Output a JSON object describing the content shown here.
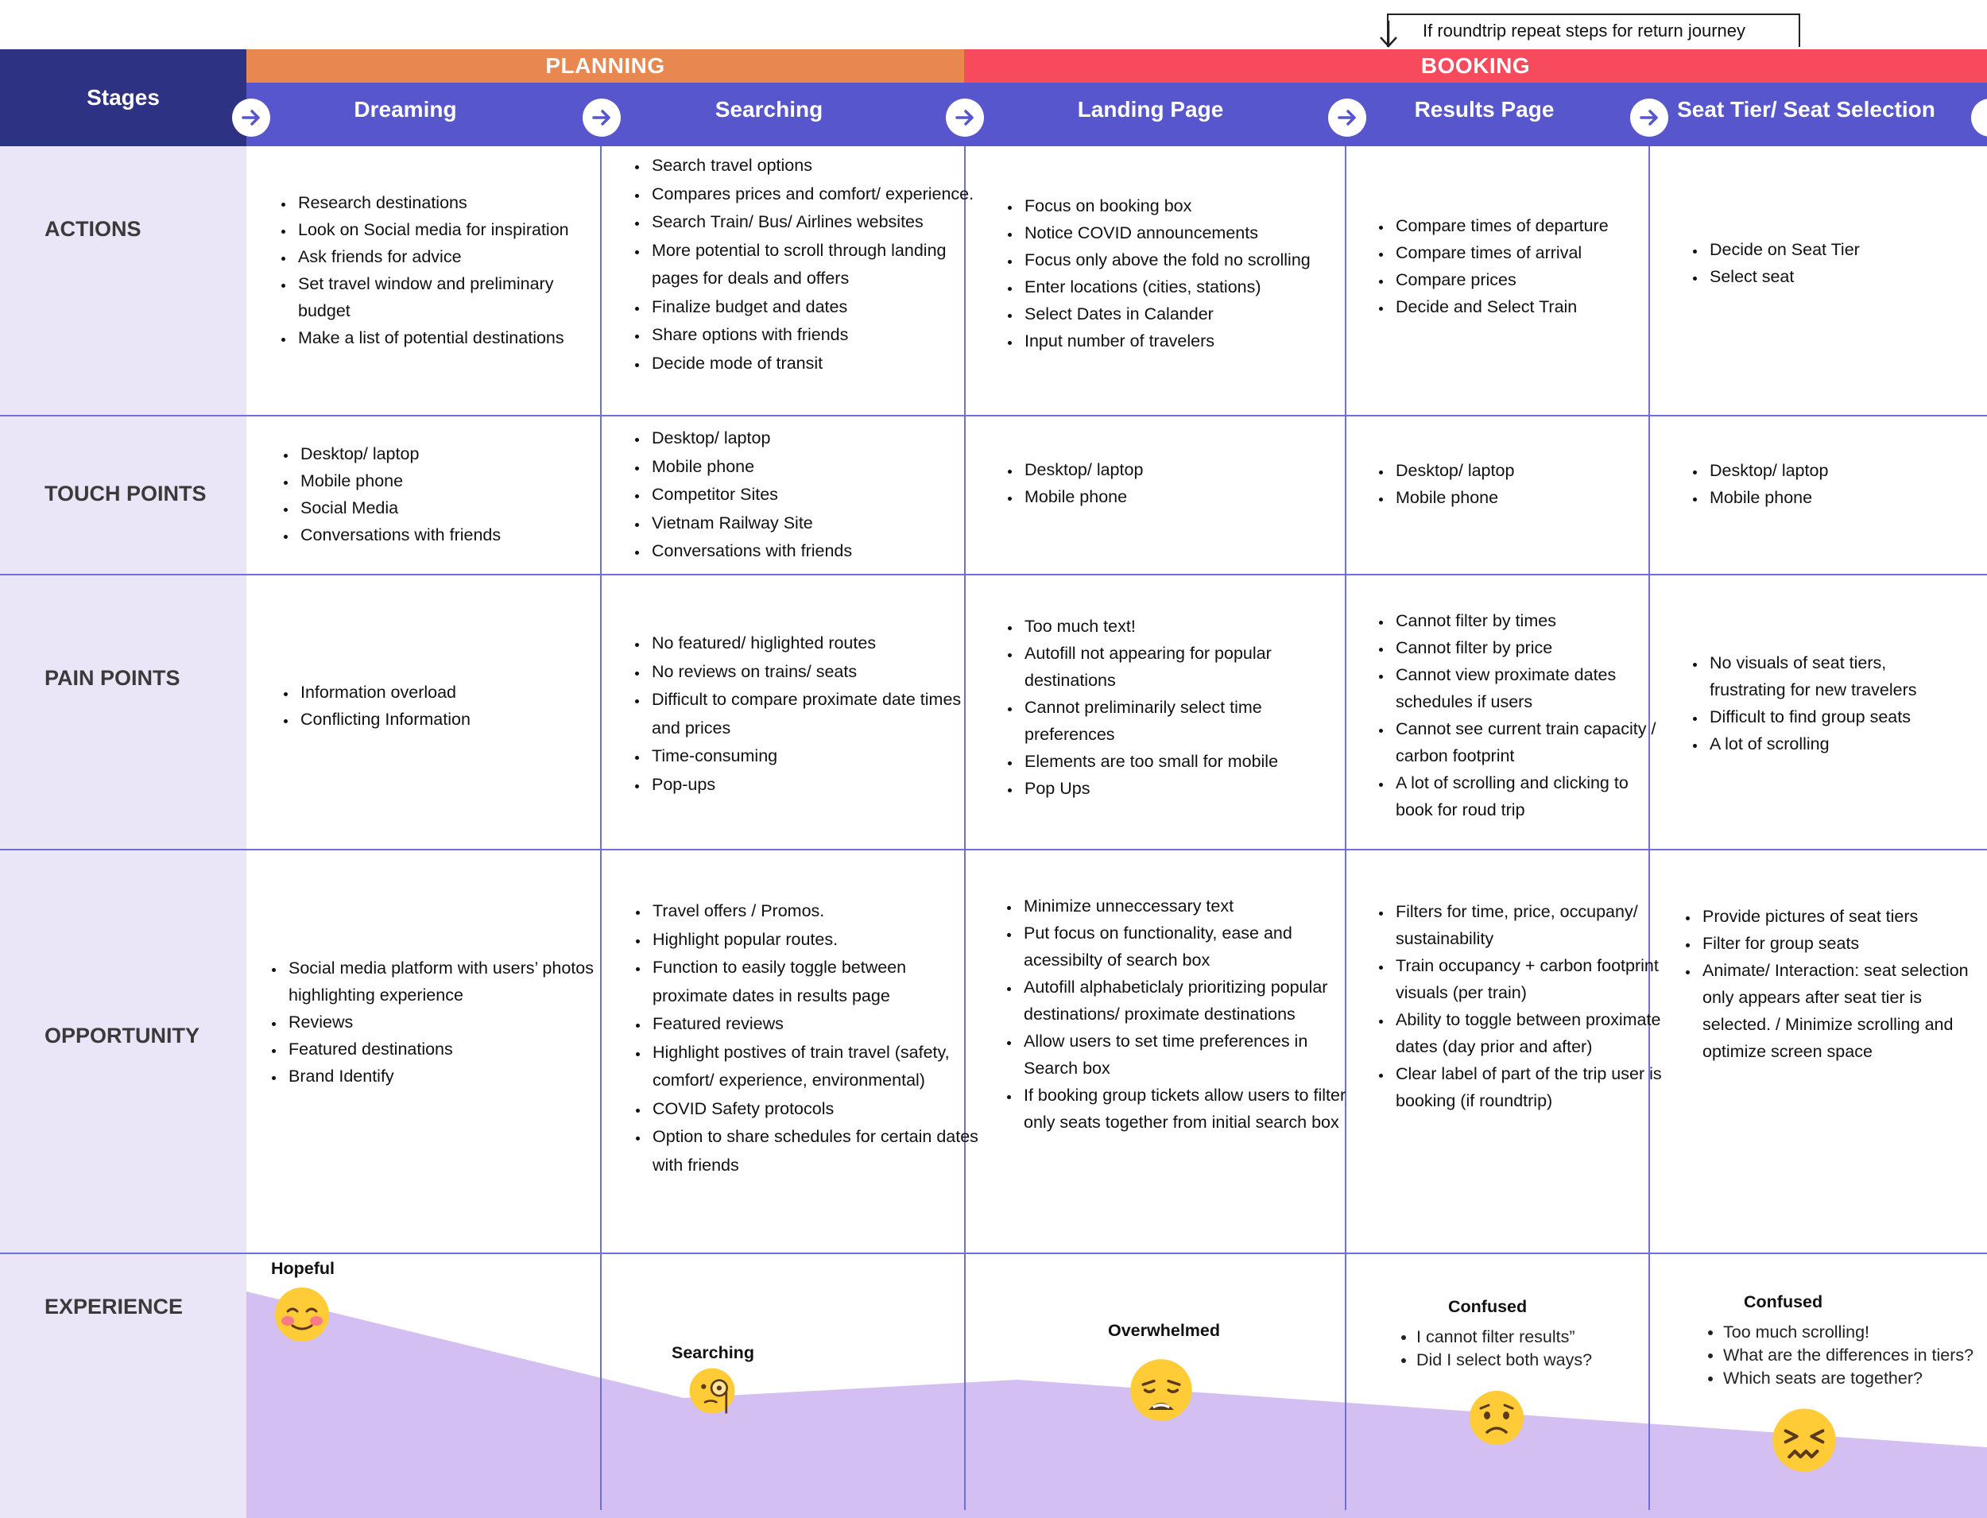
{
  "note": "If roundtrip repeat steps for return journey",
  "header": {
    "stages_label": "Stages",
    "phases": [
      "PLANNING",
      "BOOKING"
    ],
    "stages": [
      "Dreaming",
      "Searching",
      "Landing Page",
      "Results Page",
      "Seat Tier/ Seat Selection"
    ]
  },
  "rows": [
    "ACTIONS",
    "TOUCH POINTS",
    "PAIN POINTS",
    "OPPORTUNITY",
    "EXPERIENCE"
  ],
  "actions": [
    [
      "Research destinations",
      "Look on Social media for inspiration",
      "Ask friends for advice",
      "Set travel window and preliminary budget",
      "Make a list of potential destinations"
    ],
    [
      "Search travel options",
      "Compares prices and comfort/ experience.",
      "Search Train/ Bus/ Airlines websites",
      "More potential to scroll through landing pages for deals and offers",
      "Finalize budget and dates",
      "Share options with friends",
      "Decide mode of transit"
    ],
    [
      "Focus on booking box",
      "Notice COVID announcements",
      "Focus only above the fold no scrolling",
      "Enter locations (cities, stations)",
      "Select Dates in Calander",
      "Input number of travelers"
    ],
    [
      "Compare times of departure",
      "Compare times of arrival",
      "Compare prices",
      "Decide and Select Train"
    ],
    [
      "Decide on Seat Tier",
      "Select seat"
    ]
  ],
  "touch_points": [
    [
      "Desktop/ laptop",
      "Mobile phone",
      "Social Media",
      "Conversations with friends"
    ],
    [
      "Desktop/ laptop",
      "Mobile phone",
      "Competitor Sites",
      "Vietnam Railway Site",
      "Conversations with friends"
    ],
    [
      "Desktop/ laptop",
      "Mobile phone"
    ],
    [
      "Desktop/ laptop",
      "Mobile phone"
    ],
    [
      "Desktop/ laptop",
      "Mobile phone"
    ]
  ],
  "pain_points": [
    [
      "Information overload",
      "Conflicting Information"
    ],
    [
      "No featured/ higlighted routes",
      "No reviews on trains/ seats",
      "Difficult to compare proximate date times and prices",
      "Time-consuming",
      "Pop-ups"
    ],
    [
      "Too much text!",
      "Autofill not appearing for popular destinations",
      "Cannot preliminarily select time preferences",
      "Elements are too small for mobile",
      "Pop Ups"
    ],
    [
      "Cannot filter by times",
      "Cannot filter by price",
      "Cannot view proximate dates schedules if users",
      "Cannot see current train capacity / carbon footprint",
      "A lot of scrolling  and clicking to book for roud trip"
    ],
    [
      "No visuals of seat tiers, frustrating for new travelers",
      "Difficult to find group seats",
      "A lot of scrolling"
    ]
  ],
  "opportunity": [
    [
      "Social media platform with users’ photos highlighting experience",
      "Reviews",
      "Featured destinations",
      "Brand Identify"
    ],
    [
      "Travel offers / Promos.",
      "Highlight popular routes.",
      "Function to easily toggle between proximate dates in results page",
      "Featured reviews",
      "Highlight postives of train travel (safety, comfort/ experience, environmental)",
      "COVID Safety protocols",
      "Option to share schedules for certain dates with friends"
    ],
    [
      "Minimize unneccessary text",
      "Put focus on functionality, ease and acessibilty of search box",
      "Autofill alphabeticlaly prioritizing popular destinations/ proximate destinations",
      "Allow users to set time preferences in Search box",
      "If booking group tickets allow users to filter only seats together from initial search box"
    ],
    [
      "Filters for time,  price, occupany/ sustainability",
      "Train occupancy + carbon footprint visuals (per train)",
      "Ability  to toggle between proximate dates (day prior and after)",
      "Clear label of part of the trip user is booking (if roundtrip)"
    ],
    [
      "Provide pictures of seat tiers",
      "Filter for group seats",
      "Animate/ Interaction:  seat selection only appears after seat tier is selected. / Minimize scrolling and optimize screen space"
    ]
  ],
  "experience": [
    {
      "label": "Hopeful",
      "notes": []
    },
    {
      "label": "Searching",
      "notes": []
    },
    {
      "label": "Overwhelmed",
      "notes": []
    },
    {
      "label": "Confused",
      "notes": [
        "I cannot filter results”",
        "Did I select both ways?"
      ]
    },
    {
      "label": "Confused",
      "notes": [
        "Too much scrolling!",
        "What are the differences in tiers?",
        "Which seats are together?"
      ]
    }
  ],
  "icons": [
    "arrow-right-icon",
    "smiling-blush-emoji-icon",
    "monocle-face-emoji-icon",
    "weary-face-emoji-icon",
    "worried-face-emoji-icon",
    "confounded-face-emoji-icon"
  ],
  "colors": {
    "stages_bg": "#2d3282",
    "planning": "#e8874f",
    "booking": "#f74a5c",
    "stage_bar": "#5756cd",
    "grid_line": "#6f6ede",
    "label_col": "#ebe6f7",
    "curve_fill": "#d3bff2",
    "emoji": "#ffcb36"
  }
}
